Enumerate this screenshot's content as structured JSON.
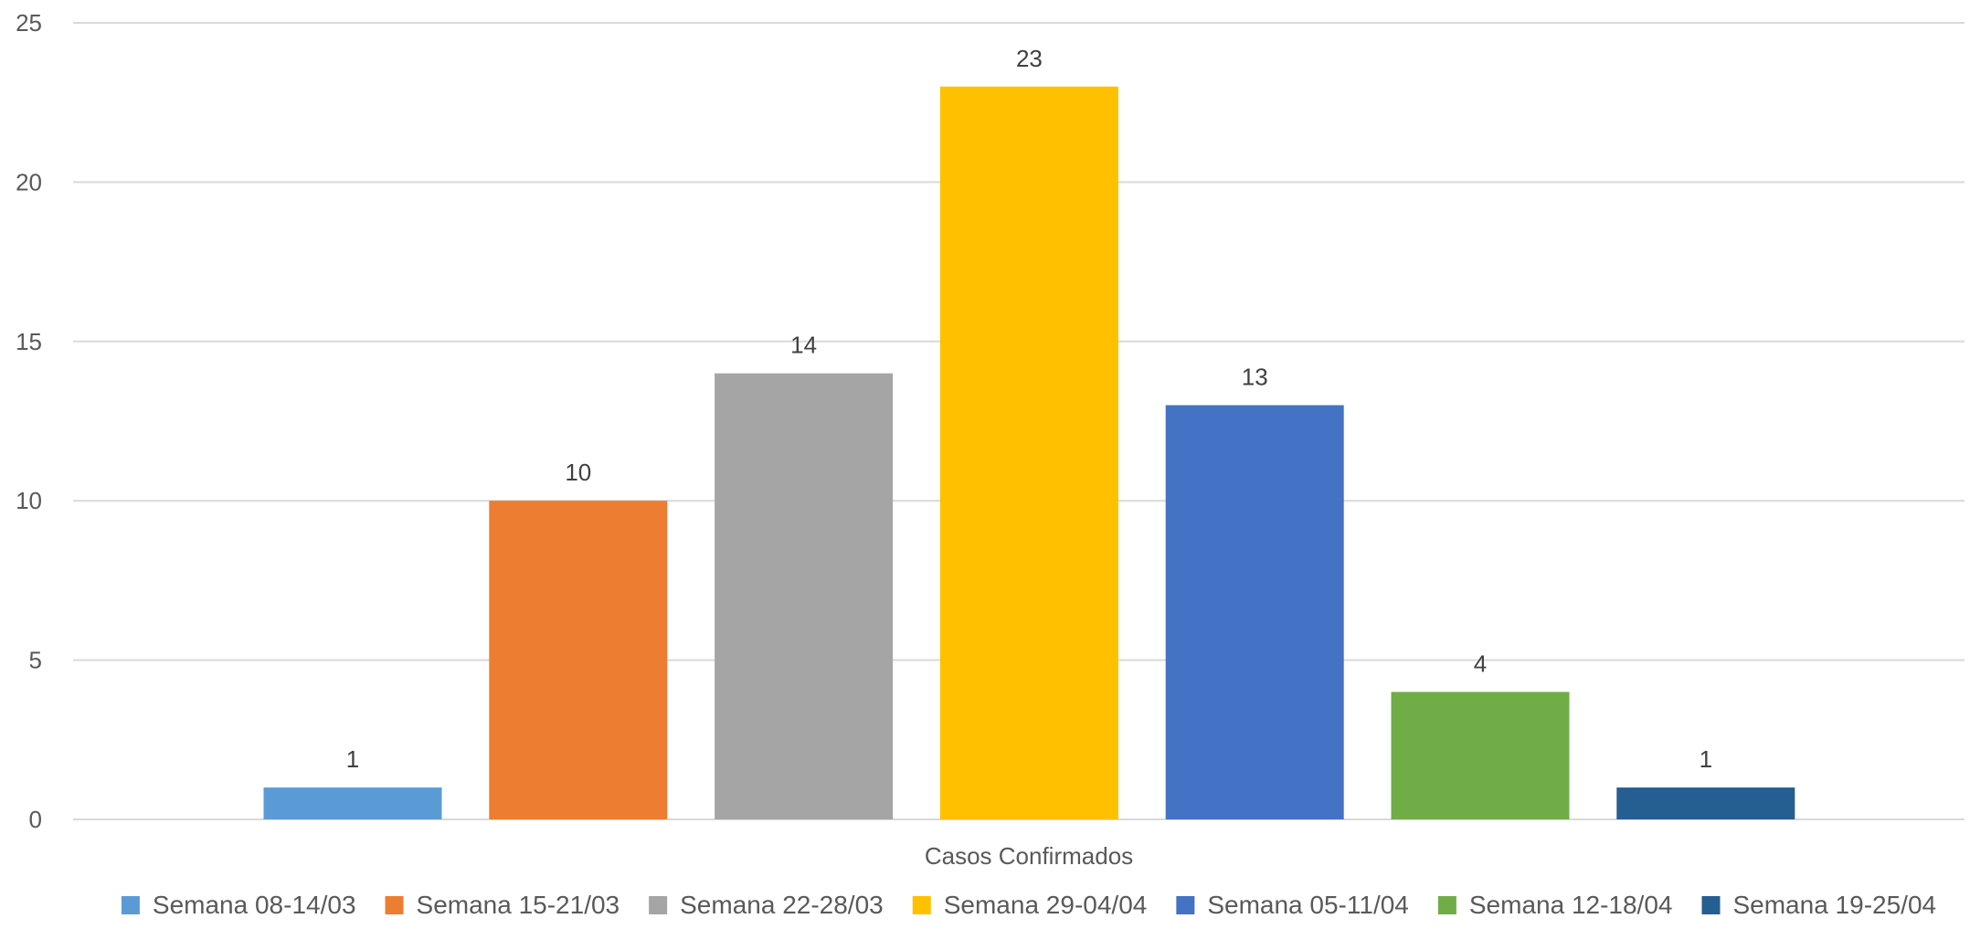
{
  "chart_data": {
    "type": "bar",
    "category_label": "Casos Confirmados",
    "series": [
      {
        "name": "Semana 08-14/03",
        "value": 1,
        "color": "#5B9BD5"
      },
      {
        "name": "Semana 15-21/03",
        "value": 10,
        "color": "#ED7D31"
      },
      {
        "name": "Semana 22-28/03",
        "value": 14,
        "color": "#A5A5A5"
      },
      {
        "name": "Semana 29-04/04",
        "value": 23,
        "color": "#FFC000"
      },
      {
        "name": "Semana 05-11/04",
        "value": 13,
        "color": "#4472C4"
      },
      {
        "name": "Semana 12-18/04",
        "value": 4,
        "color": "#70AD47"
      },
      {
        "name": "Semana 19-25/04",
        "value": 1,
        "color": "#255E91"
      }
    ],
    "ylim": [
      0,
      25
    ],
    "yticks": [
      "0",
      "5",
      "10",
      "15",
      "20",
      "25"
    ],
    "grid": true,
    "legend": "bottom",
    "gridline_color": "#D9D9D9"
  }
}
